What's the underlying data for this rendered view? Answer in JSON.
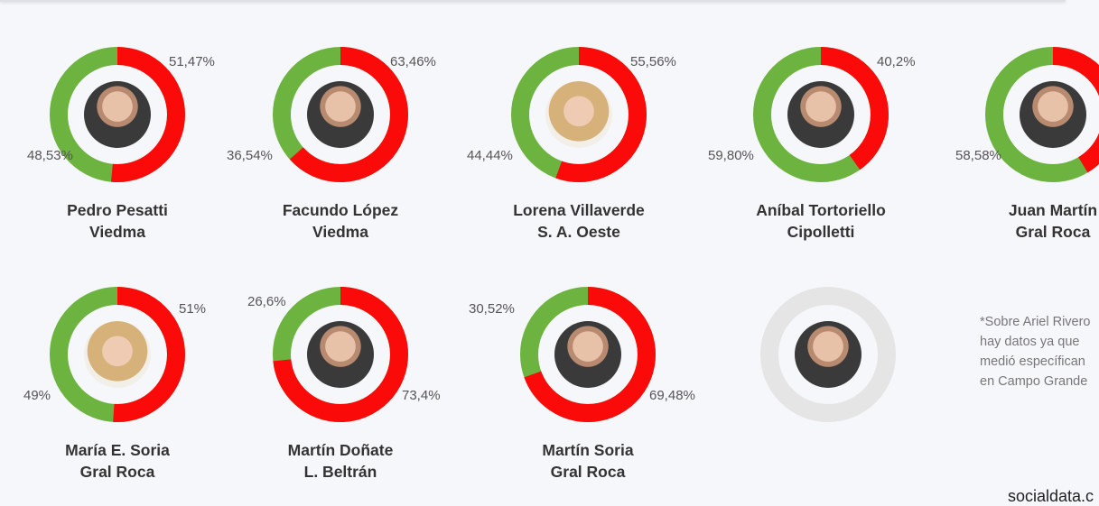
{
  "colors": {
    "favorable": "#6cb33f",
    "unfavorable": "#fb0a0a",
    "no_data": "#e5e5e5"
  },
  "chart_data": {
    "type": "pie",
    "variant": "donut",
    "series_colors": {
      "green": "#6cb33f",
      "red": "#fb0a0a"
    },
    "items": [
      {
        "name": "Pedro Pesatti",
        "place": "Viedma",
        "red": 51.47,
        "green": 48.53,
        "red_label": "51,47%",
        "green_label": "48,53%"
      },
      {
        "name": "Facundo López",
        "place": "Viedma",
        "red": 63.46,
        "green": 36.54,
        "red_label": "63,46%",
        "green_label": "36,54%"
      },
      {
        "name": "Lorena Villaverde",
        "place": "S. A. Oeste",
        "red": 55.56,
        "green": 44.44,
        "red_label": "55,56%",
        "green_label": "44,44%"
      },
      {
        "name": "Aníbal Tortoriello",
        "place": "Cipolletti",
        "red": 40.2,
        "green": 59.8,
        "red_label": "40,2%",
        "green_label": "59,80%"
      },
      {
        "name": "Juan Martín",
        "place": "Gral Roca",
        "red": 41.42,
        "green": 58.58,
        "red_label": "",
        "green_label": "58,58%"
      },
      {
        "name": "María E. Soria",
        "place": "Gral Roca",
        "red": 51,
        "green": 49,
        "red_label": "51%",
        "green_label": "49%"
      },
      {
        "name": "Martín Doñate",
        "place": "L. Beltrán",
        "red": 73.4,
        "green": 26.6,
        "red_label": "73,4%",
        "green_label": "26,6%"
      },
      {
        "name": "Martín Soria",
        "place": "Gral Roca",
        "red": 69.48,
        "green": 30.52,
        "red_label": "69,48%",
        "green_label": "30,52%"
      },
      {
        "name": "",
        "place": "",
        "red": null,
        "green": null,
        "red_label": "",
        "green_label": "",
        "no_data": true
      }
    ]
  },
  "note": [
    "*Sobre Ariel Rivero",
    "hay datos ya que",
    "medió específican",
    "en Campo Grande"
  ],
  "brand": "socialdata.c"
}
